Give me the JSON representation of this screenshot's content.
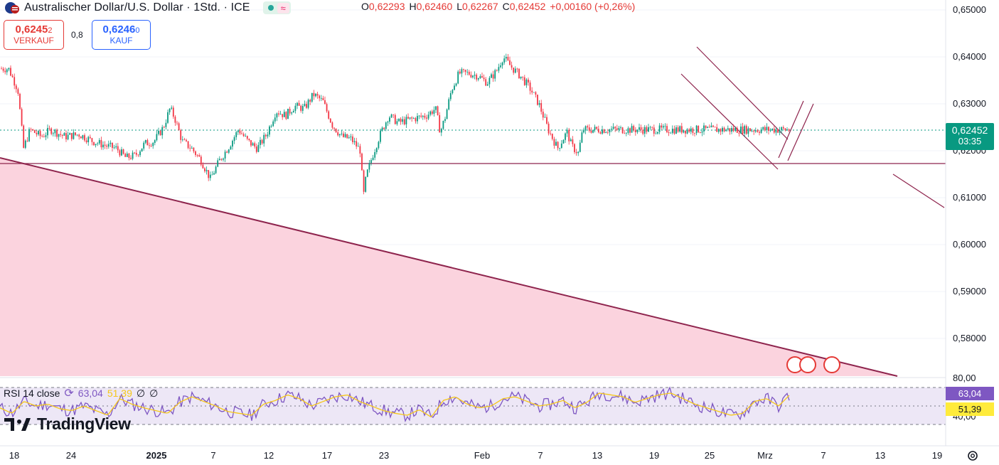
{
  "header": {
    "symbol_title": "Australischer Dollar/U.S. Dollar · 1Std. · ICE",
    "wave_symbol": "≈",
    "ohlc": {
      "o_label": "O",
      "o": "0,62293",
      "h_label": "H",
      "h": "0,62460",
      "l_label": "L",
      "l": "0,62267",
      "c_label": "C",
      "c": "0,62452",
      "change": "+0,00160 (+0,26%)"
    }
  },
  "trade": {
    "sell_price_main": "0,6245",
    "sell_price_tail": "2",
    "sell_label": "VERKAUF",
    "spread": "0,8",
    "buy_price_main": "0,6246",
    "buy_price_tail": "0",
    "buy_label": "KAUF"
  },
  "price_axis": {
    "labels": [
      "0,65000",
      "0,64000",
      "0,63000",
      "0,62000",
      "0,61000",
      "0,60000",
      "0,59000",
      "0,58000"
    ],
    "values": [
      0.65,
      0.64,
      0.63,
      0.62,
      0.61,
      0.6,
      0.59,
      0.58
    ],
    "current_price": "0,62452",
    "countdown": "03:35"
  },
  "rsi": {
    "label": "RSI 14 close",
    "value": "63,04",
    "ma_value": "51,39",
    "top_axis": "80,00",
    "bottom_axis": "40,00",
    "null_symbols": [
      "∅",
      "∅"
    ]
  },
  "time_axis": {
    "labels": [
      "18",
      "24",
      "2025",
      "7",
      "12",
      "17",
      "23",
      "Feb",
      "7",
      "13",
      "19",
      "25",
      "Mrz",
      "7",
      "13",
      "19"
    ]
  },
  "logo": {
    "text": "TradingView"
  },
  "colors": {
    "up": "#089981",
    "down": "#f23645",
    "rsi": "#7e57c2",
    "rsi_ma": "#f5c71a",
    "trendline": "#8e244d",
    "zone_fill": "#fbd3de"
  },
  "chart_data": {
    "type": "candlestick",
    "title": "Australischer Dollar/U.S. Dollar · 1Std. · ICE",
    "yrange": [
      0.5735,
      0.6525
    ],
    "ticks_y": [
      0.58,
      0.59,
      0.6,
      0.61,
      0.62,
      0.63,
      0.64,
      0.65
    ],
    "close_path": [
      [
        18.0,
        0.6375
      ],
      [
        19.0,
        0.633
      ],
      [
        19.6,
        0.6205
      ],
      [
        20.3,
        0.6245
      ],
      [
        21.5,
        0.623
      ],
      [
        22.5,
        0.6245
      ],
      [
        24.0,
        0.623
      ],
      [
        25.5,
        0.6235
      ],
      [
        27.0,
        0.622
      ],
      [
        28.5,
        0.621
      ],
      [
        29.5,
        0.6205
      ],
      [
        30.5,
        0.6185
      ],
      [
        31.5,
        0.619
      ],
      [
        32.5,
        0.6215
      ],
      [
        33.5,
        0.622
      ],
      [
        34.5,
        0.625
      ],
      [
        35.2,
        0.629
      ],
      [
        35.7,
        0.627
      ],
      [
        36.5,
        0.622
      ],
      [
        37.5,
        0.6205
      ],
      [
        38.5,
        0.618
      ],
      [
        39.5,
        0.614
      ],
      [
        40.5,
        0.618
      ],
      [
        41.5,
        0.621
      ],
      [
        42.5,
        0.6245
      ],
      [
        43.5,
        0.622
      ],
      [
        44.5,
        0.6205
      ],
      [
        45.5,
        0.6235
      ],
      [
        46.5,
        0.6285
      ],
      [
        47.5,
        0.6275
      ],
      [
        48.5,
        0.6295
      ],
      [
        49.5,
        0.629
      ],
      [
        50.5,
        0.632
      ],
      [
        51.5,
        0.6305
      ],
      [
        52.5,
        0.6255
      ],
      [
        53.5,
        0.623
      ],
      [
        54.5,
        0.6225
      ],
      [
        55.5,
        0.62
      ],
      [
        55.8,
        0.61
      ],
      [
        56.1,
        0.6145
      ],
      [
        56.7,
        0.6185
      ],
      [
        57.5,
        0.623
      ],
      [
        58.5,
        0.6275
      ],
      [
        59.5,
        0.626
      ],
      [
        60.5,
        0.6265
      ],
      [
        61.5,
        0.627
      ],
      [
        62.5,
        0.6275
      ],
      [
        63.5,
        0.629
      ],
      [
        64.0,
        0.624
      ],
      [
        64.5,
        0.627
      ],
      [
        65.2,
        0.633
      ],
      [
        66.0,
        0.6365
      ],
      [
        67.0,
        0.6365
      ],
      [
        68.0,
        0.636
      ],
      [
        69.0,
        0.6345
      ],
      [
        70.0,
        0.637
      ],
      [
        70.7,
        0.64
      ],
      [
        71.5,
        0.638
      ],
      [
        72.5,
        0.636
      ],
      [
        73.5,
        0.6335
      ],
      [
        74.5,
        0.63
      ],
      [
        75.5,
        0.6245
      ],
      [
        76.5,
        0.6205
      ],
      [
        77.5,
        0.624
      ],
      [
        78.0,
        0.621
      ],
      [
        78.7,
        0.6195
      ],
      [
        79.2,
        0.6245
      ]
    ],
    "rsi": [
      48,
      42,
      55,
      50,
      52,
      47,
      45,
      50,
      45,
      40,
      58,
      52,
      48,
      45,
      42,
      54,
      60,
      55,
      50,
      44,
      42,
      40,
      52,
      56,
      62,
      58,
      50,
      55,
      60,
      62,
      55,
      50,
      45,
      42,
      40,
      46,
      38,
      56,
      60,
      52,
      48,
      50,
      58,
      60,
      55,
      50,
      52,
      56,
      48,
      54,
      64,
      62,
      60,
      54,
      58,
      62,
      64,
      58,
      52,
      48,
      44,
      40,
      42,
      55,
      58,
      50,
      63
    ]
  }
}
